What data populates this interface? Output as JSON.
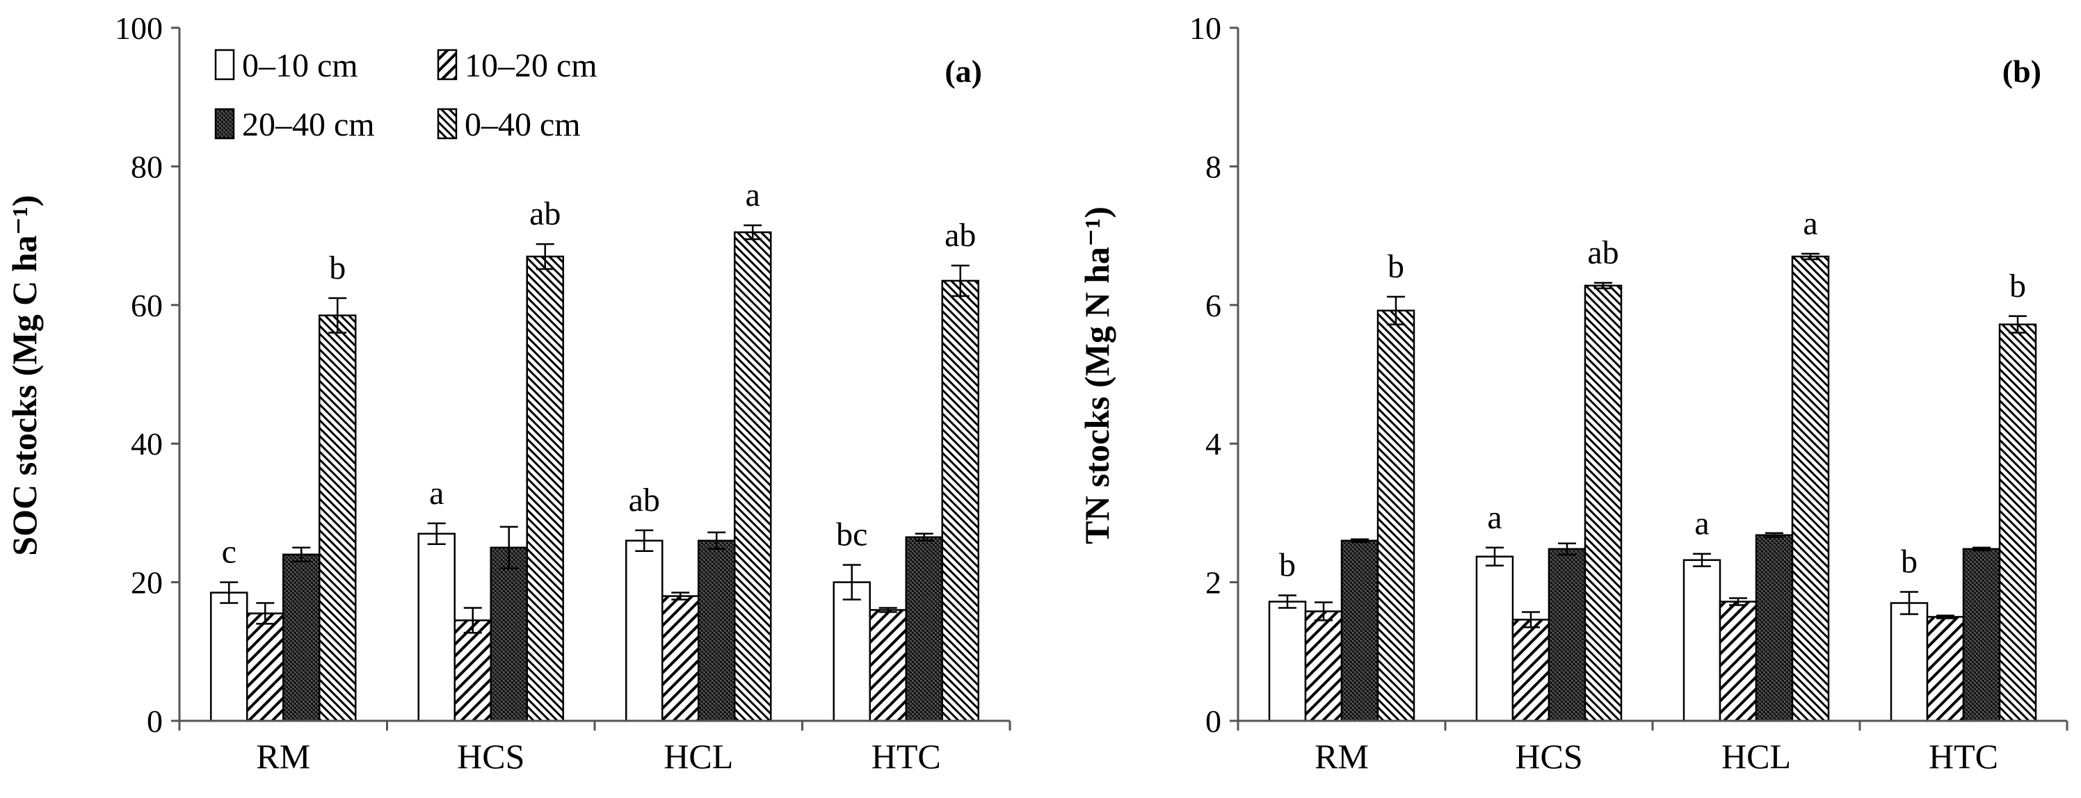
{
  "chart_data": [
    {
      "type": "bar",
      "panel_label": "(a)",
      "ylabel": "SOC stocks (Mg C ha⁻¹)",
      "ylim": [
        0,
        100
      ],
      "yticks": [
        "0",
        "20",
        "40",
        "60",
        "80",
        "100"
      ],
      "categories": [
        "RM",
        "HCS",
        "HCL",
        "HTC"
      ],
      "series": [
        {
          "name": "0–10 cm",
          "pattern": "white",
          "values": [
            18.5,
            27,
            26,
            20
          ],
          "errors": [
            1.5,
            1.5,
            1.5,
            2.5
          ]
        },
        {
          "name": "10–20 cm",
          "pattern": "diag",
          "values": [
            15.5,
            14.5,
            18,
            16
          ],
          "errors": [
            1.5,
            1.8,
            0.5,
            0.3
          ]
        },
        {
          "name": "20–40 cm",
          "pattern": "dense",
          "values": [
            24,
            25,
            26,
            26.5
          ],
          "errors": [
            1,
            3,
            1.2,
            0.5
          ]
        },
        {
          "name": "0–40 cm",
          "pattern": "fine",
          "values": [
            58.5,
            67,
            70.5,
            63.5
          ],
          "errors": [
            2.5,
            1.8,
            1.0,
            2.2
          ]
        }
      ],
      "letters_series": [
        {
          "series": 0,
          "labels": [
            "c",
            "a",
            "ab",
            "bc"
          ]
        },
        {
          "series": 3,
          "labels": [
            "b",
            "ab",
            "a",
            "ab"
          ]
        }
      ]
    },
    {
      "type": "bar",
      "panel_label": "(b)",
      "ylabel": "TN stocks (Mg N ha⁻¹)",
      "ylim": [
        0,
        10
      ],
      "yticks": [
        "0",
        "2",
        "4",
        "6",
        "8",
        "10"
      ],
      "categories": [
        "RM",
        "HCS",
        "HCL",
        "HTC"
      ],
      "series": [
        {
          "name": "0–10 cm",
          "pattern": "white",
          "values": [
            1.72,
            2.37,
            2.32,
            1.7
          ],
          "errors": [
            0.09,
            0.13,
            0.09,
            0.16
          ]
        },
        {
          "name": "10–20 cm",
          "pattern": "diag",
          "values": [
            1.58,
            1.46,
            1.72,
            1.5
          ],
          "errors": [
            0.13,
            0.11,
            0.05,
            0.02
          ]
        },
        {
          "name": "20–40 cm",
          "pattern": "dense",
          "values": [
            2.6,
            2.48,
            2.68,
            2.48
          ],
          "errors": [
            0.02,
            0.08,
            0.03,
            0.02
          ]
        },
        {
          "name": "0–40 cm",
          "pattern": "fine",
          "values": [
            5.92,
            6.28,
            6.7,
            5.72
          ],
          "errors": [
            0.2,
            0.04,
            0.04,
            0.12
          ]
        }
      ],
      "letters_series": [
        {
          "series": 0,
          "labels": [
            "b",
            "a",
            "a",
            "b"
          ]
        },
        {
          "series": 3,
          "labels": [
            "b",
            "ab",
            "a",
            "b"
          ]
        }
      ]
    }
  ],
  "legend": {
    "row1": [
      {
        "label": "0–10 cm",
        "pattern": "white"
      },
      {
        "label": "10–20 cm",
        "pattern": "diag"
      }
    ],
    "row2": [
      {
        "label": "20–40 cm",
        "pattern": "dense"
      },
      {
        "label": "0–40 cm",
        "pattern": "fine"
      }
    ]
  },
  "colors": {
    "axis": "#555555",
    "bar_stroke": "#000000",
    "background": "#ffffff"
  }
}
